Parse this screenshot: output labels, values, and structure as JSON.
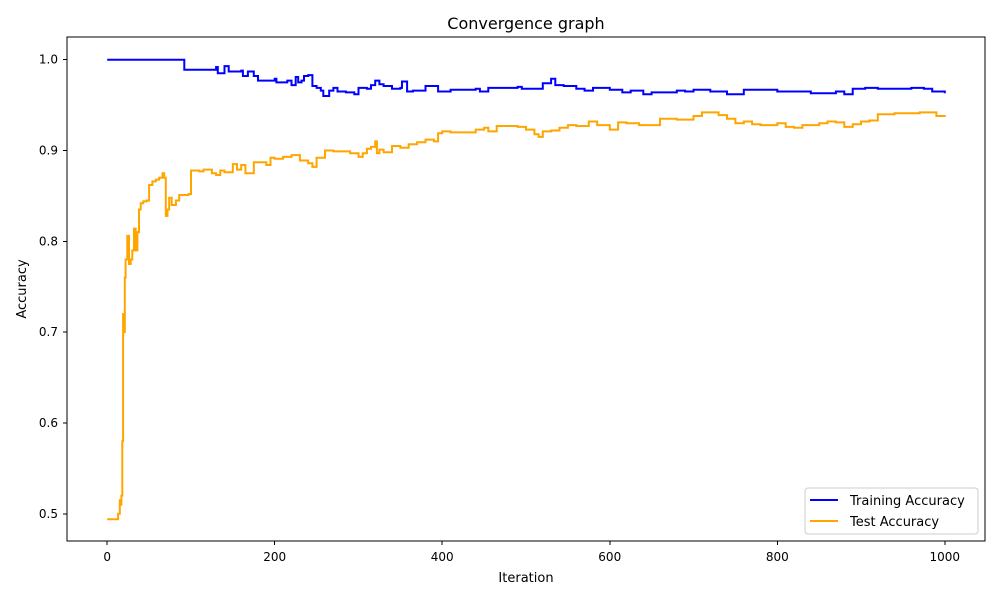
{
  "chart_data": {
    "type": "line",
    "title": "Convergence graph",
    "xlabel": "Iteration",
    "ylabel": "Accuracy",
    "xlim": [
      -48,
      1048
    ],
    "ylim": [
      0.47,
      1.025
    ],
    "xticks": [
      0,
      200,
      400,
      600,
      800,
      1000
    ],
    "xtick_labels": [
      "0",
      "200",
      "400",
      "600",
      "800",
      "1000"
    ],
    "yticks": [
      0.5,
      0.6,
      0.7,
      0.8,
      0.9,
      1.0
    ],
    "ytick_labels": [
      "0.5",
      "0.6",
      "0.7",
      "0.8",
      "0.9",
      "1.0"
    ],
    "grid": false,
    "legend_position": "bottom-right",
    "series": [
      {
        "name": "Training Accuracy",
        "color": "#0000ff",
        "x": [
          0,
          90,
          92,
          130,
          132,
          138,
          140,
          145,
          160,
          162,
          168,
          175,
          180,
          200,
          202,
          215,
          220,
          225,
          228,
          232,
          235,
          240,
          245,
          250,
          255,
          258,
          265,
          270,
          275,
          285,
          295,
          300,
          310,
          315,
          320,
          325,
          330,
          340,
          350,
          352,
          358,
          365,
          380,
          395,
          410,
          440,
          445,
          455,
          465,
          490,
          495,
          510,
          520,
          530,
          535,
          545,
          560,
          570,
          580,
          600,
          615,
          625,
          640,
          650,
          665,
          680,
          690,
          700,
          710,
          720,
          740,
          750,
          760,
          780,
          800,
          820,
          840,
          870,
          880,
          890,
          905,
          920,
          940,
          960,
          975,
          985,
          1000
        ],
        "y": [
          1.0,
          1.0,
          0.989,
          0.992,
          0.985,
          0.985,
          0.993,
          0.987,
          0.988,
          0.982,
          0.987,
          0.982,
          0.977,
          0.979,
          0.975,
          0.977,
          0.972,
          0.981,
          0.975,
          0.977,
          0.982,
          0.983,
          0.971,
          0.969,
          0.966,
          0.96,
          0.966,
          0.969,
          0.965,
          0.964,
          0.962,
          0.969,
          0.968,
          0.972,
          0.977,
          0.973,
          0.971,
          0.968,
          0.969,
          0.976,
          0.965,
          0.966,
          0.971,
          0.965,
          0.967,
          0.968,
          0.965,
          0.969,
          0.969,
          0.97,
          0.968,
          0.968,
          0.974,
          0.979,
          0.972,
          0.971,
          0.968,
          0.966,
          0.969,
          0.967,
          0.964,
          0.966,
          0.962,
          0.964,
          0.964,
          0.966,
          0.965,
          0.967,
          0.967,
          0.965,
          0.962,
          0.962,
          0.967,
          0.967,
          0.965,
          0.965,
          0.963,
          0.965,
          0.962,
          0.968,
          0.969,
          0.968,
          0.968,
          0.969,
          0.968,
          0.965,
          0.963
        ]
      },
      {
        "name": "Test Accuracy",
        "color": "#ffa500",
        "x": [
          0,
          10,
          13,
          15,
          16,
          17,
          18,
          19,
          20,
          21,
          22,
          24,
          26,
          28,
          30,
          32,
          34,
          36,
          38,
          40,
          43,
          47,
          50,
          54,
          58,
          62,
          66,
          68,
          70,
          72,
          74,
          77,
          82,
          86,
          90,
          97,
          100,
          110,
          115,
          125,
          130,
          135,
          140,
          150,
          155,
          160,
          165,
          175,
          180,
          190,
          195,
          200,
          210,
          220,
          230,
          240,
          245,
          250,
          260,
          270,
          280,
          290,
          300,
          305,
          310,
          315,
          320,
          322,
          325,
          330,
          340,
          345,
          350,
          360,
          370,
          380,
          385,
          390,
          395,
          400,
          410,
          430,
          440,
          450,
          455,
          465,
          480,
          490,
          500,
          510,
          515,
          520,
          530,
          540,
          550,
          560,
          575,
          585,
          600,
          610,
          620,
          635,
          650,
          660,
          680,
          700,
          710,
          730,
          740,
          750,
          760,
          770,
          780,
          790,
          800,
          810,
          820,
          830,
          850,
          860,
          870,
          880,
          890,
          900,
          910,
          920,
          940,
          960,
          970,
          980,
          990,
          1000
        ],
        "y": [
          0.494,
          0.494,
          0.5,
          0.515,
          0.51,
          0.52,
          0.58,
          0.72,
          0.7,
          0.76,
          0.78,
          0.806,
          0.775,
          0.78,
          0.79,
          0.814,
          0.79,
          0.81,
          0.835,
          0.842,
          0.844,
          0.845,
          0.862,
          0.866,
          0.868,
          0.87,
          0.875,
          0.87,
          0.828,
          0.835,
          0.848,
          0.84,
          0.845,
          0.851,
          0.851,
          0.852,
          0.878,
          0.877,
          0.879,
          0.875,
          0.873,
          0.878,
          0.876,
          0.885,
          0.879,
          0.884,
          0.875,
          0.887,
          0.887,
          0.884,
          0.892,
          0.891,
          0.893,
          0.895,
          0.889,
          0.886,
          0.882,
          0.892,
          0.9,
          0.899,
          0.899,
          0.897,
          0.893,
          0.897,
          0.902,
          0.904,
          0.91,
          0.897,
          0.901,
          0.898,
          0.905,
          0.905,
          0.903,
          0.907,
          0.909,
          0.912,
          0.912,
          0.91,
          0.919,
          0.921,
          0.92,
          0.92,
          0.923,
          0.925,
          0.921,
          0.927,
          0.927,
          0.926,
          0.923,
          0.918,
          0.915,
          0.921,
          0.922,
          0.925,
          0.928,
          0.927,
          0.932,
          0.928,
          0.923,
          0.931,
          0.93,
          0.928,
          0.928,
          0.935,
          0.934,
          0.938,
          0.942,
          0.939,
          0.935,
          0.93,
          0.932,
          0.929,
          0.928,
          0.928,
          0.93,
          0.926,
          0.925,
          0.928,
          0.93,
          0.932,
          0.931,
          0.926,
          0.929,
          0.932,
          0.933,
          0.94,
          0.941,
          0.941,
          0.942,
          0.942,
          0.938,
          0.937
        ]
      }
    ]
  }
}
